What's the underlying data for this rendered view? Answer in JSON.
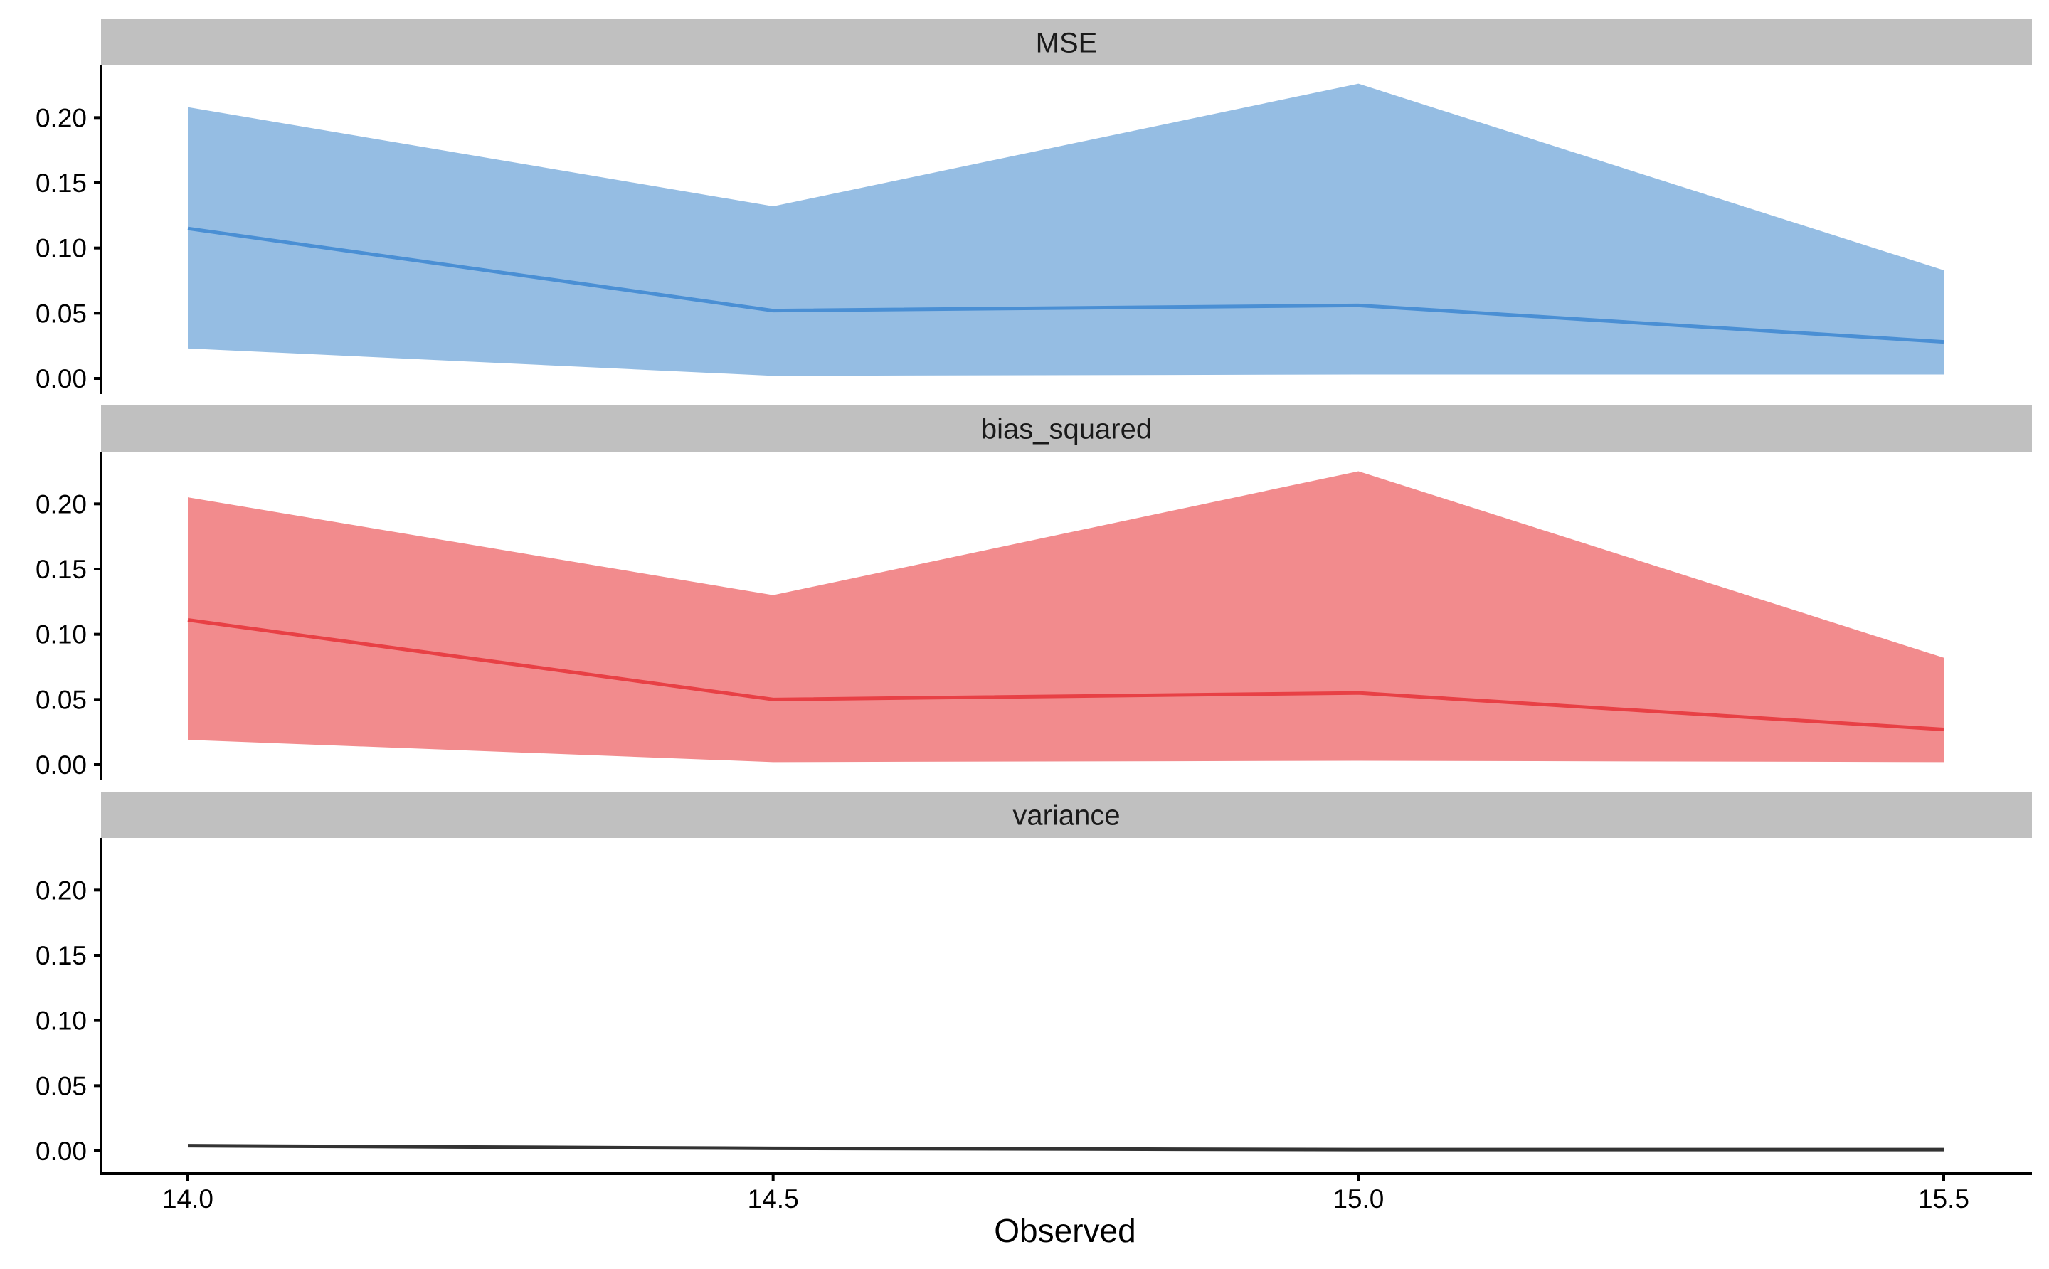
{
  "chart_data": {
    "type": "area",
    "facet_variable_shown_in_strips": true,
    "xlabel": "Observed",
    "ylabel": "",
    "x_ticks": [
      14.0,
      14.5,
      15.0,
      15.5
    ],
    "x_tick_labels": [
      "14.0",
      "14.5",
      "15.0",
      "15.5"
    ],
    "xlim": [
      13.925,
      15.575
    ],
    "y_ticks": [
      0.0,
      0.05,
      0.1,
      0.15,
      0.2
    ],
    "y_tick_labels": [
      "0.00",
      "0.05",
      "0.10",
      "0.15",
      "0.20"
    ],
    "ylim": [
      -0.012,
      0.24
    ],
    "grid": false,
    "legend": "none",
    "colors": {
      "strip_background": "#c0c0c0",
      "axis": "#000000",
      "tick_text": "#000000"
    },
    "panels": [
      {
        "label": "MSE",
        "line_color": "#4a8fd4",
        "fill_color": "#95bde3",
        "x": [
          14.0,
          14.5,
          15.0,
          15.5
        ],
        "y": [
          0.115,
          0.052,
          0.056,
          0.028
        ],
        "ymin": [
          0.023,
          0.002,
          0.003,
          0.003
        ],
        "ymax": [
          0.208,
          0.132,
          0.226,
          0.083
        ]
      },
      {
        "label": "bias_squared",
        "line_color": "#e84045",
        "fill_color": "#f28b8d",
        "x": [
          14.0,
          14.5,
          15.0,
          15.5
        ],
        "y": [
          0.111,
          0.05,
          0.055,
          0.027
        ],
        "ymin": [
          0.019,
          0.002,
          0.003,
          0.002
        ],
        "ymax": [
          0.205,
          0.13,
          0.225,
          0.082
        ]
      },
      {
        "label": "variance",
        "line_color": "#333333",
        "fill_color": "#888888",
        "x": [
          14.0,
          14.5,
          15.0,
          15.5
        ],
        "y": [
          0.004,
          0.002,
          0.001,
          0.001
        ],
        "ymin": [
          0.004,
          0.002,
          0.001,
          0.001
        ],
        "ymax": [
          0.004,
          0.002,
          0.001,
          0.001
        ]
      }
    ]
  }
}
